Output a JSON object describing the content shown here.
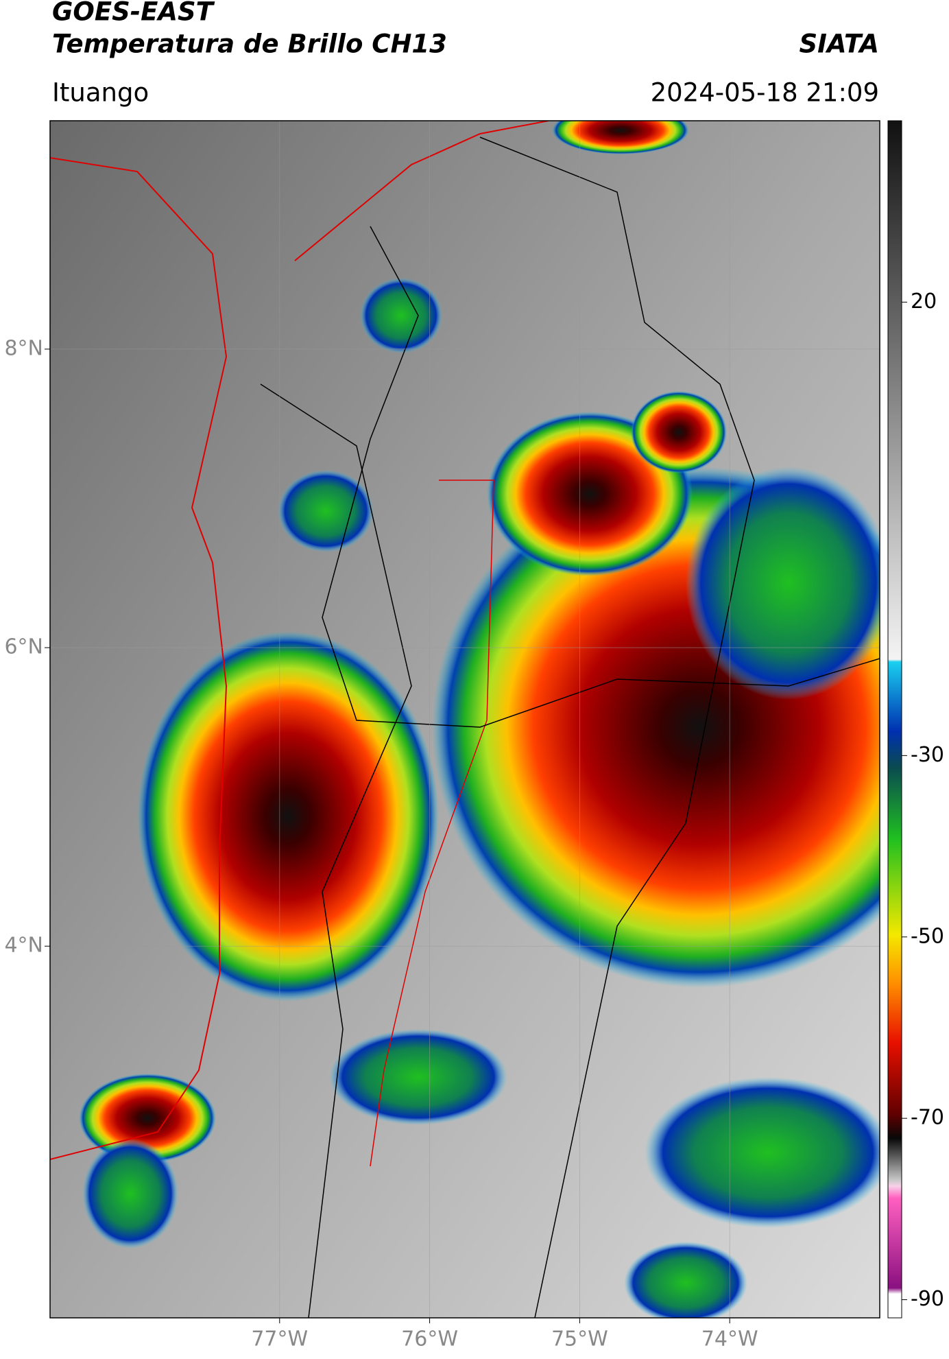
{
  "header": {
    "title": "GOES-EAST",
    "subtitle": "Temperatura de Brillo CH13",
    "source": "SIATA",
    "location": "Ituango",
    "datetime": "2024-05-18 21:09"
  },
  "map": {
    "xlim": [
      -78.53,
      -73.0
    ],
    "ylim": [
      1.51,
      9.53
    ],
    "lon_ticks": [
      {
        "value": -77,
        "label": "77°W"
      },
      {
        "value": -76,
        "label": "76°W"
      },
      {
        "value": -75,
        "label": "75°W"
      },
      {
        "value": -74,
        "label": "74°W"
      }
    ],
    "lat_ticks": [
      {
        "value": 8,
        "label": "8°N"
      },
      {
        "value": 6,
        "label": "6°N"
      },
      {
        "value": 4,
        "label": "4°N"
      }
    ],
    "grid": true
  },
  "colorbar": {
    "ylim": [
      -92,
      40
    ],
    "ticks": [
      20,
      -30,
      -50,
      -70,
      -90
    ]
  }
}
